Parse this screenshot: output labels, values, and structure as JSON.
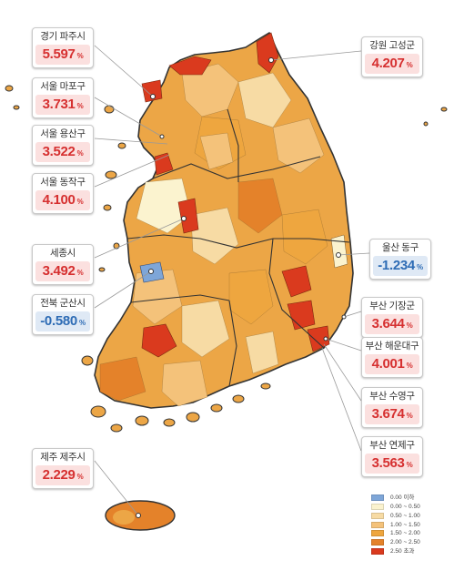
{
  "labels": {
    "gyeonggi_paju": {
      "name": "경기 파주시",
      "value": "5.597",
      "unit": "%"
    },
    "seoul_mapo": {
      "name": "서울 마포구",
      "value": "3.731",
      "unit": "%"
    },
    "seoul_yongsan": {
      "name": "서울 용산구",
      "value": "3.522",
      "unit": "%"
    },
    "seoul_dongjak": {
      "name": "서울 동작구",
      "value": "4.100",
      "unit": "%"
    },
    "sejong": {
      "name": "세종시",
      "value": "3.492",
      "unit": "%"
    },
    "jeonbuk_gunsan": {
      "name": "전북 군산시",
      "value": "-0.580",
      "unit": "%"
    },
    "jeju_jeju": {
      "name": "제주 제주시",
      "value": "2.229",
      "unit": "%"
    },
    "gangwon_goseong": {
      "name": "강원 고성군",
      "value": "4.207",
      "unit": "%"
    },
    "ulsan_dong": {
      "name": "울산 동구",
      "value": "-1.234",
      "unit": "%"
    },
    "busan_gijang": {
      "name": "부산 기장군",
      "value": "3.644",
      "unit": "%"
    },
    "busan_haeundae": {
      "name": "부산 해운대구",
      "value": "4.001",
      "unit": "%"
    },
    "busan_suyeong": {
      "name": "부산 수영구",
      "value": "3.674",
      "unit": "%"
    },
    "busan_yeonje": {
      "name": "부산 연제구",
      "value": "3.563",
      "unit": "%"
    }
  },
  "legend": [
    {
      "label": "0.00 이하",
      "color": "#7ea6d8"
    },
    {
      "label": "0.00 ~ 0.50",
      "color": "#fbf3cf"
    },
    {
      "label": "0.50 ~ 1.00",
      "color": "#f7dba4"
    },
    {
      "label": "1.00 ~ 1.50",
      "color": "#f4c27a"
    },
    {
      "label": "1.50 ~ 2.00",
      "color": "#eea63f"
    },
    {
      "label": "2.00 ~ 2.50",
      "color": "#e4822a"
    },
    {
      "label": "2.50 초과",
      "color": "#da3a1e"
    }
  ],
  "colors": {
    "land": "#eca646",
    "border": "#333333",
    "positive_text": "#d63030",
    "negative_text": "#2e6cb5",
    "leader_line": "#999999"
  }
}
